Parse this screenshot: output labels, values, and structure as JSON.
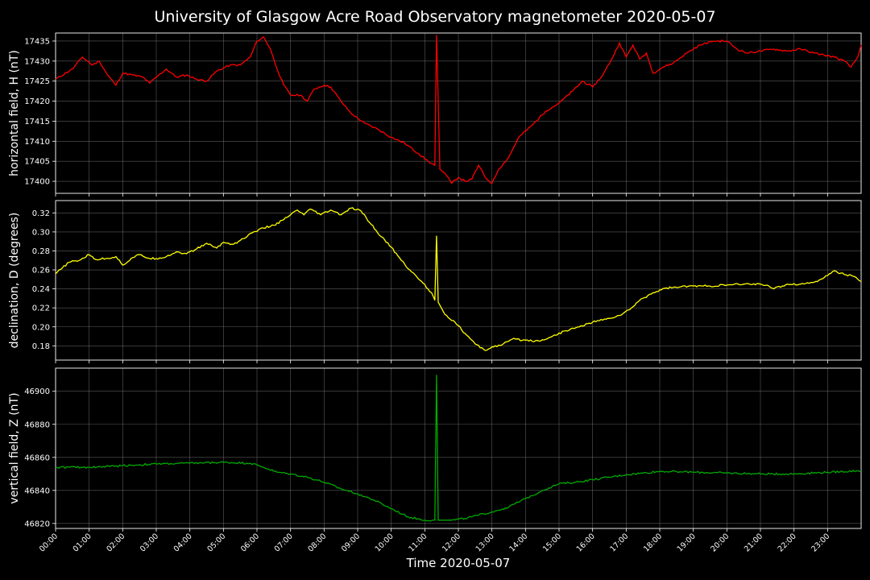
{
  "title": "University of Glasgow Acre Road Observatory magnetometer 2020-05-07",
  "xlabel": "Time 2020-05-07",
  "chart_data": [
    {
      "type": "line",
      "ylabel": "horizontal field, H (nT)",
      "color": "#ff0000",
      "xlim": [
        0,
        24
      ],
      "ylim": [
        17397,
        17437
      ],
      "yticks": [
        17400,
        17405,
        17410,
        17415,
        17420,
        17425,
        17430,
        17435
      ],
      "grid": true,
      "series": [
        {
          "x": [
            0,
            0.5,
            0.8,
            1.1,
            1.3,
            1.55,
            1.8,
            2.0,
            2.3,
            2.6,
            2.8,
            3.0,
            3.3,
            3.6,
            3.9,
            4.2,
            4.5,
            4.8,
            5.2,
            5.5,
            5.8,
            6.0,
            6.2,
            6.4,
            6.6,
            6.8,
            7.0,
            7.3,
            7.5,
            7.7,
            8.0,
            8.2,
            8.5,
            8.8,
            9.2,
            9.6,
            10.0,
            10.4,
            10.8,
            11.1,
            11.2,
            11.3,
            11.35,
            11.45,
            11.6,
            11.8,
            12.0,
            12.2,
            12.4,
            12.6,
            12.8,
            13.0,
            13.2,
            13.5,
            13.8,
            14.2,
            14.6,
            15.0,
            15.4,
            15.7,
            16.0,
            16.3,
            16.6,
            16.8,
            17.0,
            17.2,
            17.4,
            17.6,
            17.8,
            18.1,
            18.4,
            18.8,
            19.2,
            19.6,
            20.0,
            20.3,
            20.6,
            21.0,
            21.4,
            21.8,
            22.2,
            22.6,
            22.9,
            23.2,
            23.5,
            23.7,
            23.9,
            24.0
          ],
          "values": [
            17425.5,
            17428,
            17431,
            17429,
            17430,
            17426.5,
            17424,
            17427,
            17426.5,
            17426,
            17424.5,
            17426,
            17428,
            17426,
            17426.5,
            17425.5,
            17425,
            17427.5,
            17429,
            17429,
            17431,
            17435,
            17436,
            17433,
            17428,
            17424,
            17421.5,
            17421.5,
            17420,
            17423,
            17424,
            17423.5,
            17420,
            17417,
            17414.5,
            17413,
            17411,
            17409.5,
            17407,
            17405,
            17404.5,
            17404,
            17436.5,
            17403,
            17402,
            17399.5,
            17401,
            17400,
            17400.5,
            17404,
            17401,
            17399.5,
            17403,
            17406,
            17411,
            17414,
            17417.5,
            17419.5,
            17422.5,
            17425,
            17423.5,
            17426.5,
            17431,
            17434.5,
            17431,
            17434,
            17430.5,
            17432,
            17427,
            17428.5,
            17429.5,
            17432,
            17434,
            17435,
            17435,
            17433,
            17432,
            17432.5,
            17433,
            17432.5,
            17433,
            17432,
            17431.5,
            17431,
            17430,
            17428.5,
            17431,
            17434
          ]
        }
      ]
    },
    {
      "type": "line",
      "ylabel": "declination, D (degrees)",
      "color": "#ffff00",
      "xlim": [
        0,
        24
      ],
      "ylim": [
        0.165,
        0.333
      ],
      "yticks": [
        0.18,
        0.2,
        0.22,
        0.24,
        0.26,
        0.28,
        0.3,
        0.32
      ],
      "ytick_labels": [
        "0.18",
        "0.20",
        "0.22",
        "0.24",
        "0.26",
        "0.28",
        "0.30",
        "0.32"
      ],
      "grid": true,
      "series": [
        {
          "x": [
            0,
            0.2,
            0.4,
            0.7,
            1.0,
            1.2,
            1.5,
            1.8,
            2.0,
            2.3,
            2.5,
            2.8,
            3.0,
            3.3,
            3.6,
            3.9,
            4.2,
            4.5,
            4.8,
            5.0,
            5.3,
            5.6,
            5.9,
            6.2,
            6.5,
            6.8,
            7.0,
            7.2,
            7.4,
            7.6,
            7.9,
            8.2,
            8.5,
            8.8,
            9.1,
            9.4,
            9.7,
            10.0,
            10.3,
            10.6,
            10.9,
            11.2,
            11.3,
            11.35,
            11.4,
            11.6,
            11.9,
            12.2,
            12.5,
            12.8,
            13.0,
            13.3,
            13.6,
            14.0,
            14.4,
            14.8,
            15.2,
            15.6,
            16.0,
            16.4,
            16.8,
            17.1,
            17.4,
            17.8,
            18.2,
            18.6,
            19.0,
            19.5,
            20.0,
            20.5,
            21.0,
            21.2,
            21.4,
            21.8,
            22.2,
            22.6,
            22.9,
            23.2,
            23.5,
            23.8,
            24.0
          ],
          "values": [
            0.256,
            0.262,
            0.268,
            0.27,
            0.276,
            0.271,
            0.272,
            0.274,
            0.265,
            0.273,
            0.276,
            0.272,
            0.272,
            0.274,
            0.279,
            0.277,
            0.282,
            0.288,
            0.283,
            0.289,
            0.287,
            0.293,
            0.3,
            0.304,
            0.307,
            0.313,
            0.318,
            0.323,
            0.318,
            0.324,
            0.318,
            0.323,
            0.318,
            0.325,
            0.322,
            0.308,
            0.295,
            0.284,
            0.27,
            0.258,
            0.248,
            0.236,
            0.228,
            0.296,
            0.226,
            0.213,
            0.205,
            0.193,
            0.182,
            0.175,
            0.179,
            0.181,
            0.187,
            0.186,
            0.185,
            0.19,
            0.196,
            0.2,
            0.205,
            0.208,
            0.212,
            0.218,
            0.228,
            0.236,
            0.241,
            0.242,
            0.243,
            0.243,
            0.244,
            0.245,
            0.245,
            0.244,
            0.24,
            0.245,
            0.245,
            0.247,
            0.252,
            0.259,
            0.255,
            0.253,
            0.248
          ]
        }
      ]
    },
    {
      "type": "line",
      "ylabel": "vertical field, Z (nT)",
      "color": "#00aa00",
      "xlim": [
        0,
        24
      ],
      "ylim": [
        46817,
        46914
      ],
      "yticks": [
        46820,
        46840,
        46860,
        46880,
        46900
      ],
      "grid": true,
      "series": [
        {
          "x": [
            0,
            1,
            2,
            3,
            4,
            5,
            5.8,
            6.2,
            6.6,
            7.0,
            7.5,
            8.0,
            8.5,
            9.0,
            9.5,
            10.0,
            10.5,
            11.0,
            11.3,
            11.35,
            11.4,
            11.8,
            12.2,
            12.6,
            13.0,
            13.5,
            14.0,
            14.5,
            15.0,
            15.5,
            16.0,
            16.5,
            17.0,
            17.5,
            18.0,
            18.5,
            19.0,
            20.0,
            21.0,
            22.0,
            23.0,
            24.0
          ],
          "values": [
            46854,
            46854,
            46855,
            46856,
            46856.5,
            46857,
            46856.5,
            46854,
            46851,
            46850,
            46848,
            46845,
            46841,
            46838,
            46834,
            46829,
            46824,
            46822,
            46822,
            46910,
            46822,
            46822,
            46823,
            46825,
            46827,
            46830,
            46835,
            46840,
            46844,
            46845,
            46846.5,
            46848,
            46849.5,
            46850.5,
            46851.5,
            46851.5,
            46851,
            46850.5,
            46850,
            46850,
            46851,
            46852
          ]
        }
      ]
    }
  ],
  "xticks": [
    "00:00",
    "01:00",
    "02:00",
    "03:00",
    "04:00",
    "05:00",
    "06:00",
    "07:00",
    "08:00",
    "09:00",
    "10:00",
    "11:00",
    "12:00",
    "13:00",
    "14:00",
    "15:00",
    "16:00",
    "17:00",
    "18:00",
    "19:00",
    "20:00",
    "21:00",
    "22:00",
    "23:00"
  ]
}
